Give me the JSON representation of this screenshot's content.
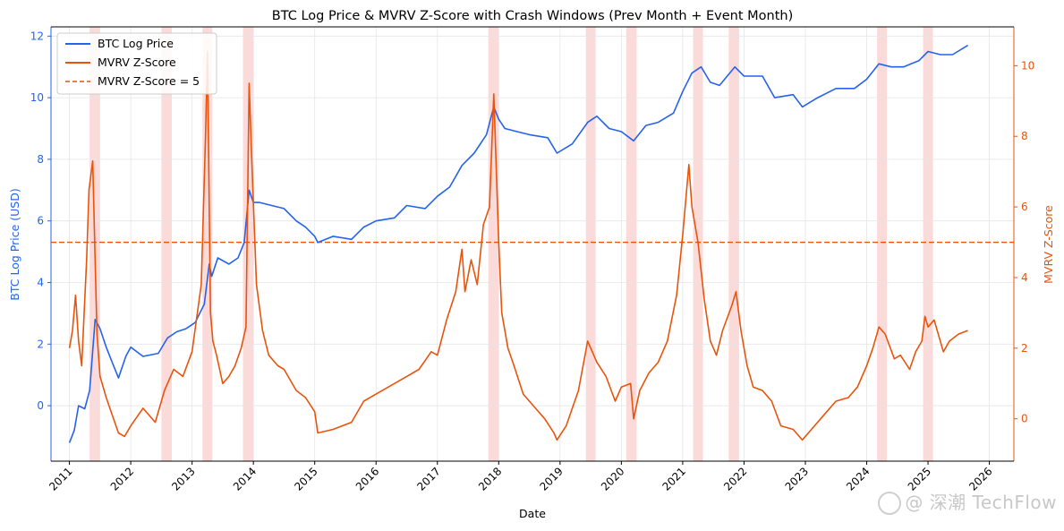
{
  "chart_data": {
    "type": "line",
    "title": "BTC Log Price & MVRV Z-Score with Crash Windows (Prev Month + Event Month)",
    "xlabel": "Date",
    "ylabel_left": "BTC Log Price (USD)",
    "ylabel_right": "MVRV Z-Score",
    "xlim": [
      2010.7,
      2026.4
    ],
    "ylim_left": [
      -1.8,
      12.3
    ],
    "ylim_right": [
      -1.2,
      11.1
    ],
    "x_ticks": [
      2011,
      2012,
      2013,
      2014,
      2015,
      2016,
      2017,
      2018,
      2019,
      2020,
      2021,
      2022,
      2023,
      2024,
      2025,
      2026
    ],
    "x_tick_labels": [
      "2011",
      "2012",
      "2013",
      "2014",
      "2015",
      "2016",
      "2017",
      "2018",
      "2019",
      "2020",
      "2021",
      "2022",
      "2023",
      "2024",
      "2025",
      "2026"
    ],
    "y_left_ticks": [
      0,
      2,
      4,
      6,
      8,
      10,
      12
    ],
    "y_right_ticks": [
      0,
      2,
      4,
      6,
      8,
      10
    ],
    "grid": true,
    "legend_position": "top-left",
    "colors": {
      "price": "#2563eb",
      "mvrv": "#e8540c",
      "threshold": "#e8540c",
      "crash": "#f6a3a3",
      "left_axis": "#2563eb",
      "right_axis": "#e8540c"
    },
    "series": [
      {
        "name": "BTC Log Price",
        "axis": "left",
        "x": [
          2011.0,
          2011.08,
          2011.15,
          2011.25,
          2011.33,
          2011.42,
          2011.5,
          2011.6,
          2011.7,
          2011.8,
          2011.92,
          2012.0,
          2012.2,
          2012.45,
          2012.6,
          2012.75,
          2012.9,
          2013.05,
          2013.2,
          2013.28,
          2013.32,
          2013.42,
          2013.6,
          2013.75,
          2013.85,
          2013.93,
          2014.0,
          2014.1,
          2014.3,
          2014.5,
          2014.7,
          2014.85,
          2015.0,
          2015.05,
          2015.3,
          2015.6,
          2015.8,
          2016.0,
          2016.3,
          2016.5,
          2016.8,
          2017.0,
          2017.2,
          2017.4,
          2017.6,
          2017.8,
          2017.92,
          2018.0,
          2018.1,
          2018.3,
          2018.5,
          2018.8,
          2018.95,
          2019.2,
          2019.45,
          2019.6,
          2019.8,
          2020.0,
          2020.2,
          2020.4,
          2020.6,
          2020.85,
          2021.0,
          2021.15,
          2021.3,
          2021.45,
          2021.6,
          2021.85,
          2022.0,
          2022.3,
          2022.5,
          2022.8,
          2022.95,
          2023.2,
          2023.5,
          2023.8,
          2024.0,
          2024.2,
          2024.4,
          2024.6,
          2024.85,
          2025.0,
          2025.2,
          2025.4,
          2025.65
        ],
        "values": [
          -1.2,
          -0.8,
          0.0,
          -0.1,
          0.5,
          2.8,
          2.5,
          1.9,
          1.4,
          0.9,
          1.6,
          1.9,
          1.6,
          1.7,
          2.2,
          2.4,
          2.5,
          2.7,
          3.3,
          4.6,
          4.2,
          4.8,
          4.6,
          4.8,
          5.3,
          7.0,
          6.6,
          6.6,
          6.5,
          6.4,
          6.0,
          5.8,
          5.5,
          5.3,
          5.5,
          5.4,
          5.8,
          6.0,
          6.1,
          6.5,
          6.4,
          6.8,
          7.1,
          7.8,
          8.2,
          8.8,
          9.7,
          9.3,
          9.0,
          8.9,
          8.8,
          8.7,
          8.2,
          8.5,
          9.2,
          9.4,
          9.0,
          8.9,
          8.6,
          9.1,
          9.2,
          9.5,
          10.2,
          10.8,
          11.0,
          10.5,
          10.4,
          11.0,
          10.7,
          10.7,
          10.0,
          10.1,
          9.7,
          10.0,
          10.3,
          10.3,
          10.6,
          11.1,
          11.0,
          11.0,
          11.2,
          11.5,
          11.4,
          11.4,
          11.7
        ]
      },
      {
        "name": "MVRV Z-Score",
        "axis": "right",
        "x": [
          2011.0,
          2011.05,
          2011.1,
          2011.15,
          2011.2,
          2011.28,
          2011.32,
          2011.38,
          2011.42,
          2011.45,
          2011.5,
          2011.6,
          2011.7,
          2011.8,
          2011.9,
          2012.0,
          2012.2,
          2012.4,
          2012.55,
          2012.7,
          2012.85,
          2013.0,
          2013.15,
          2013.22,
          2013.25,
          2013.3,
          2013.34,
          2013.4,
          2013.5,
          2013.6,
          2013.7,
          2013.8,
          2013.88,
          2013.93,
          2013.97,
          2014.05,
          2014.15,
          2014.25,
          2014.4,
          2014.5,
          2014.7,
          2014.85,
          2015.0,
          2015.05,
          2015.3,
          2015.6,
          2015.8,
          2016.0,
          2016.3,
          2016.5,
          2016.7,
          2016.9,
          2017.0,
          2017.15,
          2017.3,
          2017.4,
          2017.45,
          2017.55,
          2017.65,
          2017.75,
          2017.85,
          2017.92,
          2018.0,
          2018.05,
          2018.15,
          2018.25,
          2018.4,
          2018.6,
          2018.75,
          2018.9,
          2018.95,
          2019.1,
          2019.3,
          2019.45,
          2019.5,
          2019.6,
          2019.75,
          2019.9,
          2020.0,
          2020.15,
          2020.2,
          2020.3,
          2020.45,
          2020.6,
          2020.75,
          2020.9,
          2021.0,
          2021.1,
          2021.15,
          2021.25,
          2021.35,
          2021.45,
          2021.55,
          2021.65,
          2021.8,
          2021.87,
          2021.95,
          2022.05,
          2022.15,
          2022.3,
          2022.45,
          2022.6,
          2022.8,
          2022.95,
          2023.1,
          2023.3,
          2023.5,
          2023.7,
          2023.85,
          2024.0,
          2024.1,
          2024.2,
          2024.3,
          2024.45,
          2024.55,
          2024.7,
          2024.8,
          2024.9,
          2024.95,
          2025.0,
          2025.1,
          2025.25,
          2025.35,
          2025.5,
          2025.65
        ],
        "values": [
          2.0,
          2.5,
          3.5,
          2.2,
          1.5,
          4.5,
          6.5,
          7.3,
          4.5,
          2.4,
          1.2,
          0.6,
          0.1,
          -0.4,
          -0.5,
          -0.2,
          0.3,
          -0.1,
          0.8,
          1.4,
          1.2,
          1.9,
          3.8,
          8.0,
          10.4,
          3.0,
          2.2,
          1.8,
          1.0,
          1.2,
          1.5,
          2.0,
          2.6,
          9.5,
          7.5,
          3.8,
          2.5,
          1.8,
          1.5,
          1.4,
          0.8,
          0.6,
          0.2,
          -0.4,
          -0.3,
          -0.1,
          0.5,
          0.7,
          1.0,
          1.2,
          1.4,
          1.9,
          1.8,
          2.8,
          3.6,
          4.8,
          3.6,
          4.5,
          3.8,
          5.5,
          6.0,
          9.2,
          5.0,
          3.0,
          2.0,
          1.5,
          0.7,
          0.3,
          0.0,
          -0.4,
          -0.6,
          -0.2,
          0.8,
          2.2,
          2.0,
          1.6,
          1.2,
          0.5,
          0.9,
          1.0,
          0.0,
          0.8,
          1.3,
          1.6,
          2.2,
          3.5,
          5.2,
          7.2,
          6.0,
          5.0,
          3.4,
          2.2,
          1.8,
          2.5,
          3.2,
          3.6,
          2.5,
          1.5,
          0.9,
          0.8,
          0.5,
          -0.2,
          -0.3,
          -0.6,
          -0.3,
          0.1,
          0.5,
          0.6,
          0.9,
          1.5,
          2.0,
          2.6,
          2.4,
          1.7,
          1.8,
          1.4,
          1.9,
          2.2,
          2.9,
          2.6,
          2.8,
          1.9,
          2.2,
          2.4,
          2.5
        ]
      },
      {
        "name": "MVRV Z-Score = 5",
        "axis": "right",
        "style": "dashed",
        "value": 5
      }
    ],
    "crash_windows": [
      [
        2011.33,
        2011.5
      ],
      [
        2012.5,
        2012.67
      ],
      [
        2013.17,
        2013.33
      ],
      [
        2013.83,
        2014.0
      ],
      [
        2017.83,
        2018.0
      ],
      [
        2019.42,
        2019.58
      ],
      [
        2020.08,
        2020.25
      ],
      [
        2021.17,
        2021.33
      ],
      [
        2021.75,
        2021.92
      ],
      [
        2024.17,
        2024.33
      ],
      [
        2024.92,
        2025.08
      ]
    ]
  },
  "watermark": {
    "text": "@ 深潮 TechFlow"
  }
}
